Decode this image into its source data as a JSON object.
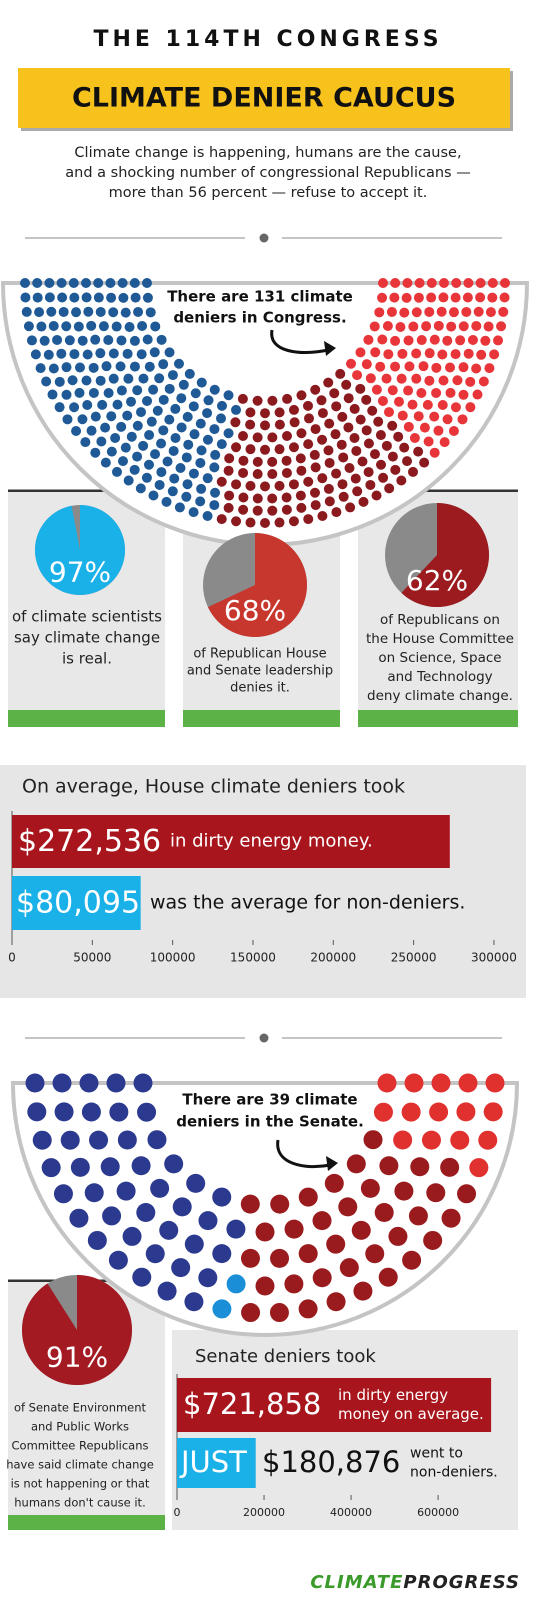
{
  "header": {
    "eyebrow": "THE 114TH CONGRESS",
    "title": "CLIMATE DENIER CAUCUS",
    "intro": [
      "Climate change is happening, humans are the cause,",
      "and a shocking number of congressional Republicans —",
      "more than 56 percent — refuse to accept it."
    ]
  },
  "chart_data": [
    {
      "type": "parliament",
      "annotation": [
        "There are 131 climate",
        "deniers in Congress."
      ],
      "values": [
        188,
        131,
        116
      ],
      "colors": [
        "#1f5a96",
        "#8b1a1f",
        "#e8353a"
      ]
    },
    {
      "type": "pie",
      "values": [
        97
      ],
      "value_labels": [
        "97%"
      ],
      "color": "#1ab0e8",
      "caption": [
        "of climate scientists",
        "say climate change",
        "is real."
      ]
    },
    {
      "type": "pie",
      "values": [
        68
      ],
      "value_labels": [
        "68%"
      ],
      "color": "#c8372d",
      "caption": [
        "of Republican House",
        "and Senate leadership",
        "denies it."
      ]
    },
    {
      "type": "pie",
      "values": [
        62
      ],
      "value_labels": [
        "62%"
      ],
      "color": "#9b1b1e",
      "caption": [
        "of Republicans on",
        "the House Committee",
        "on Science, Space",
        "and Technology",
        "deny climate change."
      ]
    },
    {
      "type": "hbar",
      "title": "On average, House climate deniers took",
      "values": [
        272536,
        80095
      ],
      "value_labels": [
        "$272,536",
        "$80,095"
      ],
      "captions": [
        [
          "in dirty energy money."
        ],
        [
          "was the average for non-deniers."
        ]
      ],
      "colors": [
        "#a8151d",
        "#1ab0e8"
      ],
      "xlim": [
        0,
        310000
      ],
      "xticks": [
        0,
        50000,
        100000,
        150000,
        200000,
        250000,
        300000
      ]
    },
    {
      "type": "parliament",
      "annotation": [
        "There are 39 climate",
        "deniers in the Senate."
      ],
      "values": [
        44,
        2,
        39,
        15
      ],
      "colors": [
        "#2b3a8f",
        "#1a8fd8",
        "#9a1b1e",
        "#e0312e"
      ]
    },
    {
      "type": "pie",
      "values": [
        91
      ],
      "value_labels": [
        "91%"
      ],
      "color": "#a31a22",
      "caption": [
        "of Senate Environment",
        "and Public Works",
        "Committee Republicans",
        "have said climate change",
        "is not happening or that",
        "humans don't cause it."
      ]
    },
    {
      "type": "hbar",
      "title": "Senate deniers took",
      "values": [
        721858,
        180876
      ],
      "value_labels": [
        "$721,858",
        "$180,876"
      ],
      "bar_notes": [
        null,
        "JUST"
      ],
      "captions": [
        [
          "in dirty energy",
          "money on average."
        ],
        [
          "went to",
          "non-deniers."
        ]
      ],
      "colors": [
        "#a8151d",
        "#1ab0e8"
      ],
      "xlim": [
        0,
        740000
      ],
      "xticks": [
        0,
        200000,
        400000,
        600000
      ]
    }
  ],
  "footer": {
    "logo": [
      "CLIMATE",
      "PROGRESS"
    ]
  }
}
